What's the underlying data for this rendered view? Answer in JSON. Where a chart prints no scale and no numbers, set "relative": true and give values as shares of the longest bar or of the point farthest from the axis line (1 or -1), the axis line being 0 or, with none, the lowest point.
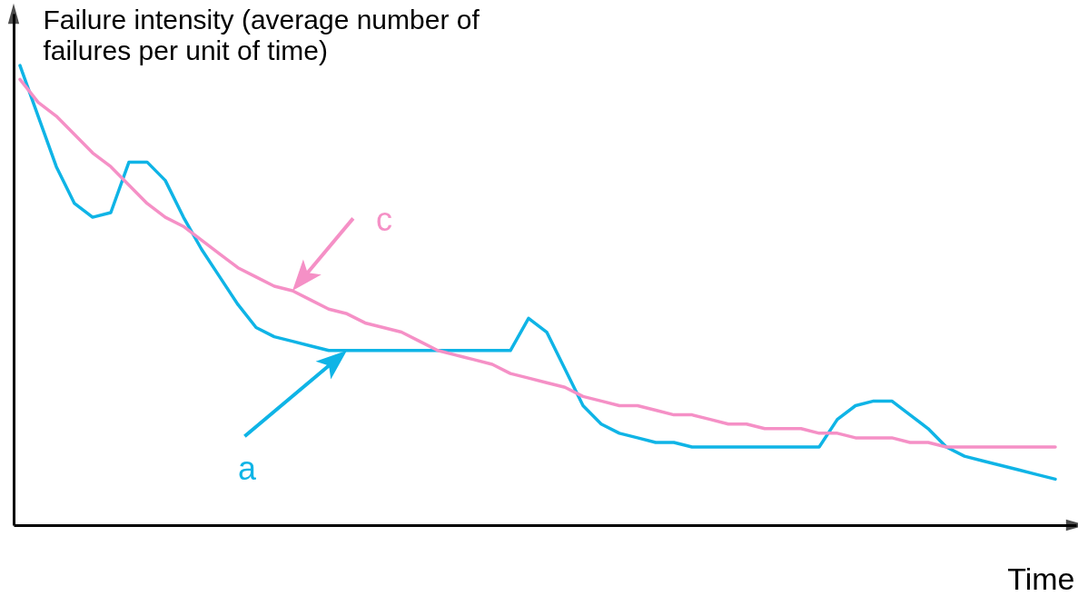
{
  "chart_data": {
    "type": "line",
    "relative": true,
    "xlabel": "Time",
    "ylabel": "Failure intensity (average number of\nfailures per unit of time)",
    "categories": [
      null,
      null,
      null,
      null,
      null,
      null,
      null,
      null,
      null,
      null,
      null,
      null,
      null,
      null,
      null,
      null,
      null,
      null,
      null,
      null,
      null,
      null,
      null,
      null,
      null,
      null,
      null,
      null,
      null,
      null,
      null,
      null,
      null,
      null,
      null,
      null,
      null,
      null,
      null,
      null,
      null,
      null,
      null,
      null,
      null,
      null,
      null,
      null,
      null,
      null,
      null,
      null,
      null,
      null,
      null,
      null,
      null,
      null
    ],
    "series": [
      {
        "name": "a",
        "color": "#0fb4e6",
        "values": [
          1.0,
          0.89,
          0.78,
          0.7,
          0.67,
          0.68,
          0.79,
          0.79,
          0.75,
          0.67,
          0.6,
          0.54,
          0.48,
          0.43,
          0.41,
          0.4,
          0.39,
          0.38,
          0.38,
          0.38,
          0.38,
          0.38,
          0.38,
          0.38,
          0.38,
          0.38,
          0.38,
          0.38,
          0.45,
          0.42,
          0.34,
          0.26,
          0.22,
          0.2,
          0.19,
          0.18,
          0.18,
          0.17,
          0.17,
          0.17,
          0.17,
          0.17,
          0.17,
          0.17,
          0.17,
          0.23,
          0.26,
          0.27,
          0.27,
          0.24,
          0.21,
          0.17,
          0.15,
          0.14,
          0.13,
          0.12,
          0.11,
          0.1
        ]
      },
      {
        "name": "c",
        "color": "#f590c6",
        "values": [
          0.97,
          0.92,
          0.89,
          0.85,
          0.81,
          0.78,
          0.74,
          0.7,
          0.67,
          0.65,
          0.62,
          0.59,
          0.56,
          0.54,
          0.52,
          0.51,
          0.49,
          0.47,
          0.46,
          0.44,
          0.43,
          0.42,
          0.4,
          0.38,
          0.37,
          0.36,
          0.35,
          0.33,
          0.32,
          0.31,
          0.3,
          0.28,
          0.27,
          0.26,
          0.26,
          0.25,
          0.24,
          0.24,
          0.23,
          0.22,
          0.22,
          0.21,
          0.21,
          0.21,
          0.2,
          0.2,
          0.19,
          0.19,
          0.19,
          0.18,
          0.18,
          0.17,
          0.17,
          0.17,
          0.17,
          0.17,
          0.17,
          0.17
        ]
      }
    ]
  }
}
